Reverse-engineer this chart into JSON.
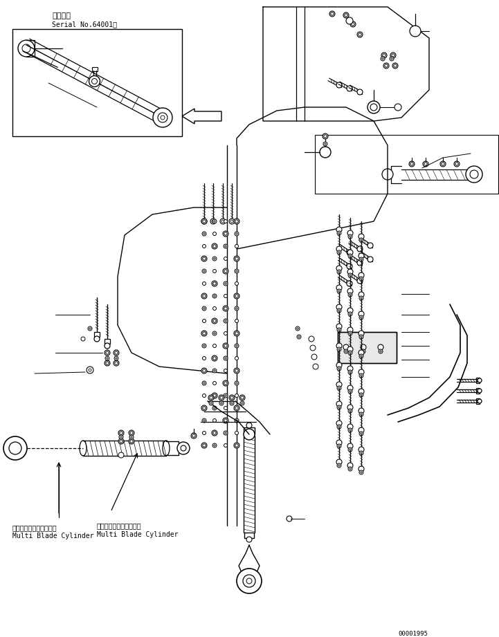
{
  "bg": "#ffffff",
  "lc": "#000000",
  "fw": 7.21,
  "fh": 9.21,
  "dpi": 100,
  "title_jp": "適用号機",
  "title_serial": "Serial No.64001～",
  "label_jp": "マルチブレードシリンダ",
  "label_en": "Multi Blade Cylinder",
  "part_number": "00001995"
}
